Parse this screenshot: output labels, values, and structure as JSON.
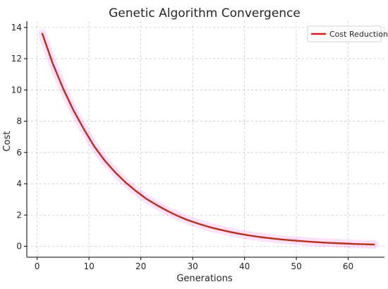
{
  "chart_data": {
    "type": "line",
    "title": "Genetic Algorithm Convergence",
    "xlabel": "Generations",
    "ylabel": "Cost",
    "xlim": [
      -2,
      67
    ],
    "ylim": [
      -0.7,
      14.4
    ],
    "xticks": [
      0,
      10,
      20,
      30,
      40,
      50,
      60
    ],
    "yticks": [
      0,
      2,
      4,
      6,
      8,
      10,
      12,
      14
    ],
    "grid": true,
    "legend_position": "top-right",
    "series": [
      {
        "name": "Cost Reduction",
        "color": "#e31a1c",
        "x": [
          1,
          3,
          5,
          7,
          9,
          11,
          13,
          15,
          17,
          19,
          21,
          23,
          25,
          27,
          29,
          31,
          33,
          35,
          37,
          39,
          41,
          43,
          45,
          47,
          49,
          51,
          53,
          55,
          57,
          59,
          61,
          63,
          65
        ],
        "values": [
          13.6,
          11.7,
          10.1,
          8.7,
          7.5,
          6.4,
          5.5,
          4.75,
          4.1,
          3.55,
          3.05,
          2.65,
          2.28,
          1.96,
          1.68,
          1.45,
          1.25,
          1.08,
          0.93,
          0.8,
          0.69,
          0.59,
          0.51,
          0.44,
          0.38,
          0.33,
          0.28,
          0.24,
          0.21,
          0.18,
          0.15,
          0.13,
          0.11
        ]
      }
    ]
  },
  "colors": {
    "line_overlay": "#8b4513",
    "highlight": "#ff00ff",
    "grid": "#c8c8c8",
    "axis": "#000000"
  }
}
